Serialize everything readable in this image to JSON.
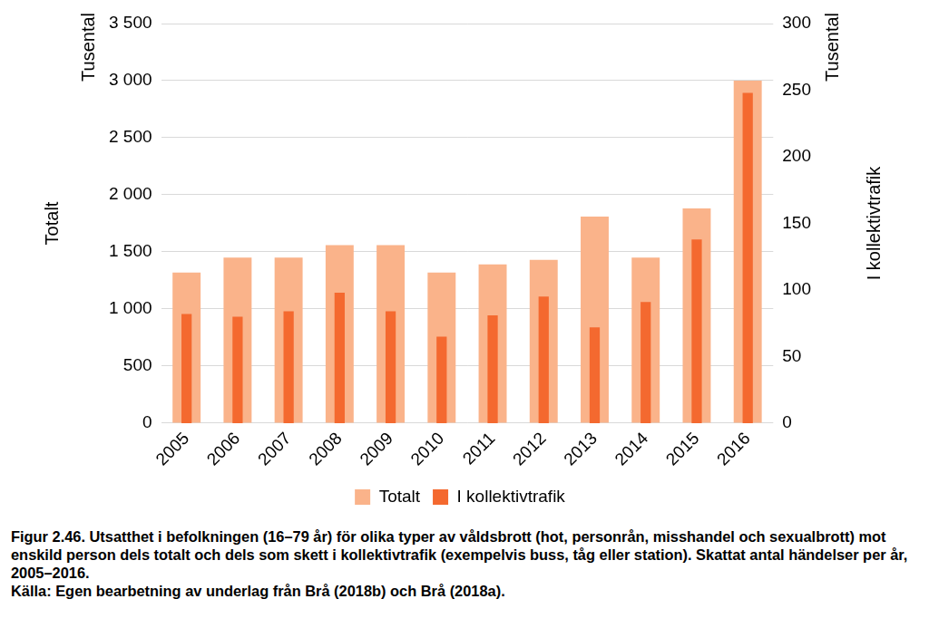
{
  "chart_data": {
    "type": "bar",
    "categories": [
      "2005",
      "2006",
      "2007",
      "2008",
      "2009",
      "2010",
      "2011",
      "2012",
      "2013",
      "2014",
      "2015",
      "2016"
    ],
    "series": [
      {
        "name": "Totalt",
        "color": "#fab38a",
        "axis": "y",
        "values": [
          1320,
          1450,
          1450,
          1560,
          1560,
          1320,
          1390,
          1430,
          1810,
          1450,
          1880,
          3000
        ]
      },
      {
        "name": "I kollektivtrafik",
        "color": "#f4692f",
        "axis": "y2",
        "values": [
          82,
          80,
          84,
          98,
          84,
          65,
          81,
          95,
          72,
          91,
          138,
          248
        ]
      }
    ],
    "ylabel": "Totalt",
    "y2label": "I kollektivtrafik",
    "annotations": [
      {
        "text": "Tusental",
        "axis": "y"
      },
      {
        "text": "Tusental",
        "axis": "y2"
      }
    ],
    "ylim": [
      0,
      3500
    ],
    "yticks": [
      0,
      500,
      {
        "value": 1000,
        "label": "1 000"
      },
      {
        "value": 1500,
        "label": "1 500"
      },
      {
        "value": 2000,
        "label": "2 000"
      },
      {
        "value": 2500,
        "label": "2 500"
      },
      {
        "value": 3000,
        "label": "3 000"
      },
      {
        "value": 3500,
        "label": "3 500"
      }
    ],
    "y2lim": [
      0,
      300
    ],
    "y2ticks": [
      0,
      50,
      100,
      150,
      200,
      250,
      300
    ],
    "grid": true,
    "legend": "bottom",
    "caption": "Figur 2.46. Utsatthet i befolkningen (16–79 år) för olika typer av våldsbrott (hot, personrån, misshandel och sexualbrott) mot enskild person dels totalt och dels som skett i kollektivtrafik (exempelvis buss, tåg eller station). Skattat antal händelser per år, 2005–2016.",
    "source": "Källa: Egen bearbetning av underlag från Brå (2018b) och Brå (2018a)."
  }
}
